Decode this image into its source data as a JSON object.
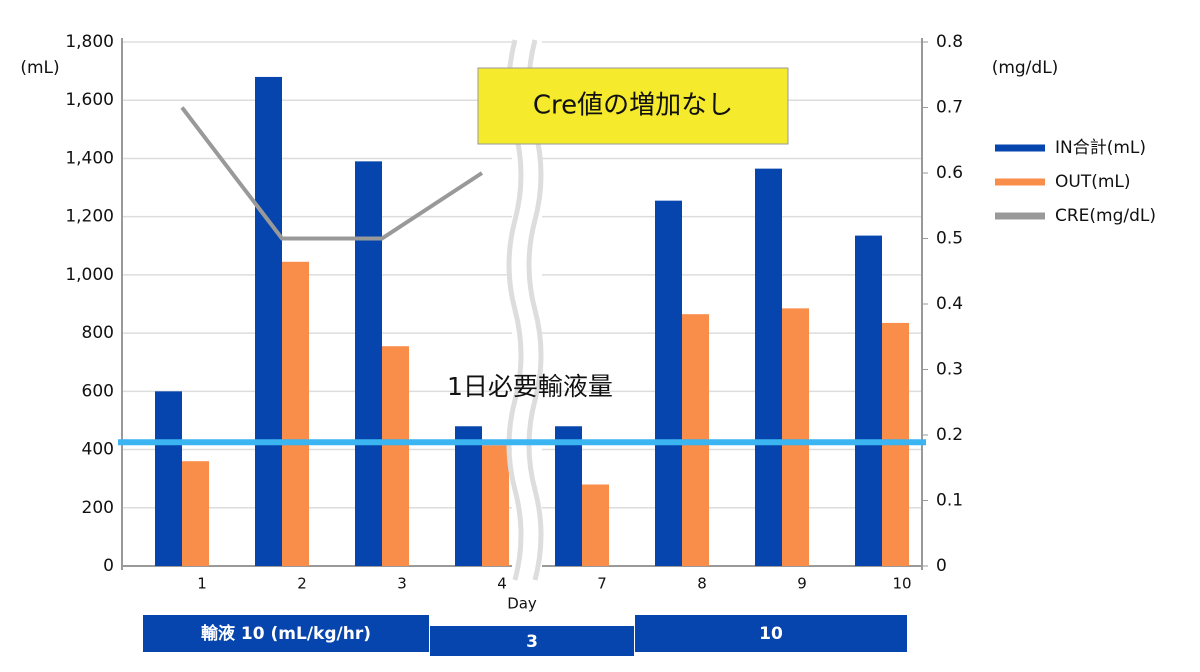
{
  "chart_data": {
    "type": "bar",
    "categories": [
      "1",
      "2",
      "3",
      "4",
      "7",
      "8",
      "9",
      "10"
    ],
    "series": [
      {
        "name": "IN合計(mL)",
        "color": "#0645ad",
        "type": "bar",
        "values": [
          600,
          1680,
          1390,
          480,
          480,
          1255,
          1365,
          1135
        ]
      },
      {
        "name": "OUT(mL)",
        "color": "#f98d4a",
        "type": "bar",
        "values": [
          360,
          1045,
          755,
          415,
          280,
          865,
          885,
          835
        ]
      },
      {
        "name": "CRE(mg/dL)",
        "color": "#999999",
        "type": "line",
        "axis": "y2",
        "values": [
          0.7,
          0.5,
          0.5,
          0.6,
          null,
          null,
          null,
          null
        ]
      }
    ],
    "ylim": [
      0,
      1800
    ],
    "yticks": [
      0,
      200,
      400,
      600,
      800,
      {
        "value": 1000,
        "label": "1,000"
      },
      {
        "value": 1200,
        "label": "1,200"
      },
      {
        "value": 1400,
        "label": "1,400"
      },
      {
        "value": 1600,
        "label": "1,600"
      },
      {
        "value": 1800,
        "label": "1,800"
      }
    ],
    "y2lim": [
      0,
      0.8
    ],
    "y2ticks": [
      0,
      0.1,
      0.2,
      0.3,
      0.4,
      0.5,
      0.6,
      0.7,
      0.8
    ],
    "y_label": "(mL)",
    "y2_label": "(mg/dL)",
    "x_label": "Day",
    "grid": true,
    "legend": "right",
    "reference_line": {
      "value": 425,
      "label": "1日必要輸液量",
      "color": "#3bb4f2"
    },
    "annotation": "Cre値の増加なし",
    "infusion_labels": [
      "輸液 10 (mL/kg/hr)",
      "3",
      "10"
    ]
  }
}
